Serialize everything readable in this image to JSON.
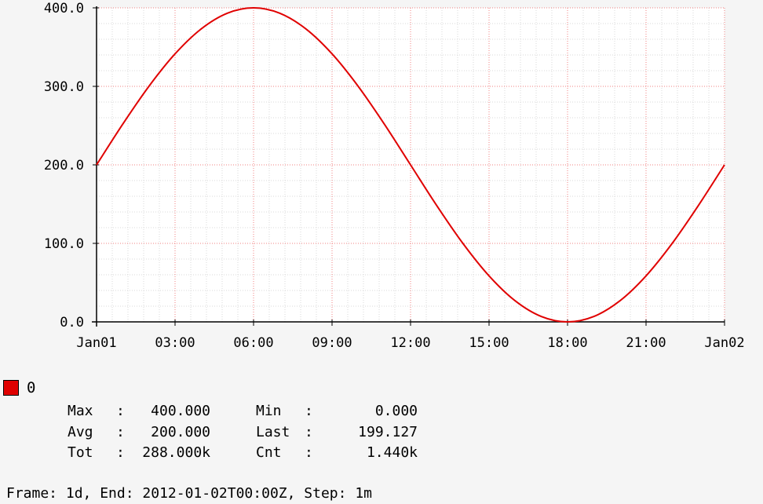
{
  "chart_data": {
    "type": "line",
    "x_start": "Jan01 00:00",
    "x_end": "Jan02 00:00",
    "x_ticks": [
      "Jan01",
      "03:00",
      "06:00",
      "09:00",
      "12:00",
      "15:00",
      "18:00",
      "21:00",
      "Jan02"
    ],
    "y_ticks": [
      "0.0",
      "100.0",
      "200.0",
      "300.0",
      "400.0"
    ],
    "ylim": [
      0,
      400
    ],
    "grid": true,
    "series": [
      {
        "name": "0",
        "color": "#e00000",
        "x": [
          "00:00",
          "01:00",
          "02:00",
          "03:00",
          "04:00",
          "05:00",
          "06:00",
          "07:00",
          "08:00",
          "09:00",
          "10:00",
          "11:00",
          "12:00",
          "13:00",
          "14:00",
          "15:00",
          "16:00",
          "17:00",
          "18:00",
          "19:00",
          "20:00",
          "21:00",
          "22:00",
          "23:00",
          "24:00"
        ],
        "values": [
          200.0,
          251.8,
          300.0,
          341.4,
          373.2,
          393.2,
          400.0,
          393.2,
          373.2,
          341.4,
          300.0,
          251.8,
          200.0,
          148.2,
          100.0,
          58.6,
          26.8,
          6.8,
          0.0,
          6.8,
          26.8,
          58.6,
          100.0,
          148.2,
          200.0
        ]
      }
    ]
  },
  "legend": {
    "label": "0",
    "color": "#e00000"
  },
  "stats": [
    {
      "label": "Max",
      "sep": ":",
      "value": "400.000",
      "label2": "Min",
      "sep2": ":",
      "value2": "0.000"
    },
    {
      "label": "Avg",
      "sep": ":",
      "value": "200.000",
      "label2": "Last",
      "sep2": ":",
      "value2": "199.127"
    },
    {
      "label": "Tot",
      "sep": ":",
      "value": "288.000k",
      "label2": "Cnt",
      "sep2": ":",
      "value2": "1.440k"
    }
  ],
  "footer": "Frame: 1d, End: 2012-01-02T00:00Z, Step: 1m"
}
